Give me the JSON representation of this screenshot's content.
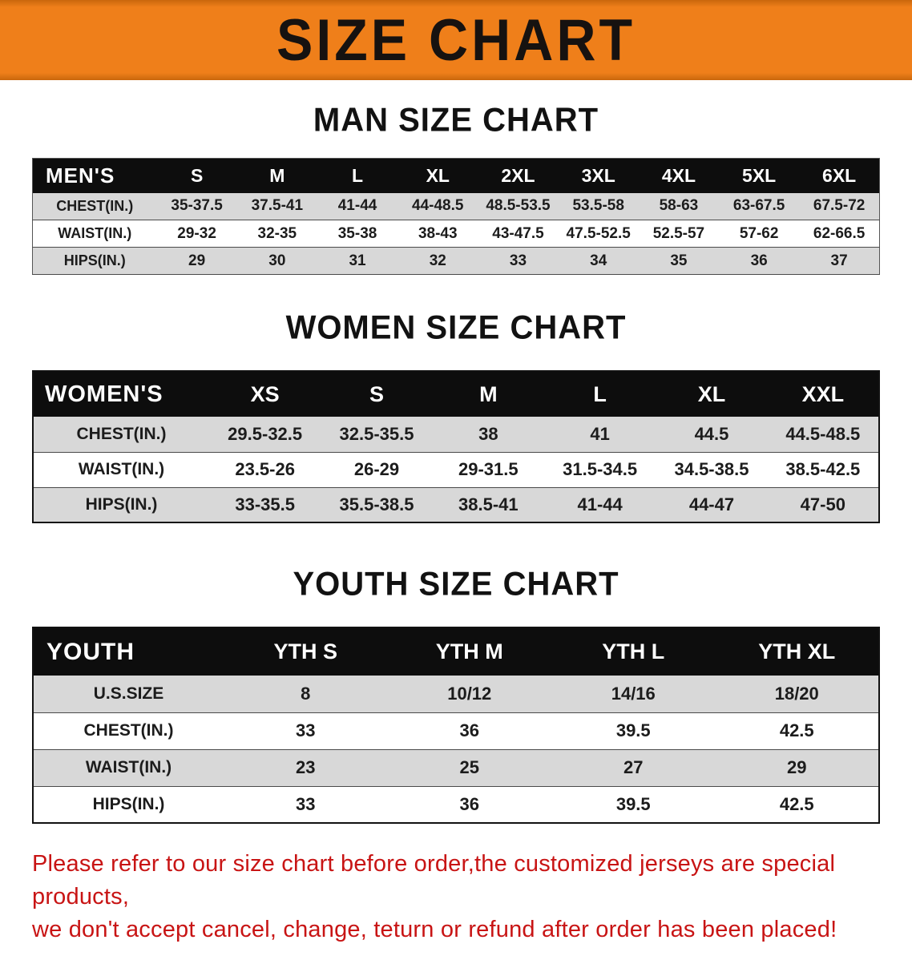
{
  "colors": {
    "accent": "#ef7f1a",
    "table-header-bg": "#0d0d0d",
    "row-shade": "#d8d8d8",
    "warning": "#c81414"
  },
  "banner": {
    "title": "SIZE CHART"
  },
  "sections": [
    {
      "id": "men",
      "heading": "MAN SIZE CHART",
      "table": {
        "header": [
          "MEN'S",
          "S",
          "M",
          "L",
          "XL",
          "2XL",
          "3XL",
          "4XL",
          "5XL",
          "6XL"
        ],
        "rows": [
          [
            "CHEST(IN.)",
            "35-37.5",
            "37.5-41",
            "41-44",
            "44-48.5",
            "48.5-53.5",
            "53.5-58",
            "58-63",
            "63-67.5",
            "67.5-72"
          ],
          [
            "WAIST(IN.)",
            "29-32",
            "32-35",
            "35-38",
            "38-43",
            "43-47.5",
            "47.5-52.5",
            "52.5-57",
            "57-62",
            "62-66.5"
          ],
          [
            "HIPS(IN.)",
            "29",
            "30",
            "31",
            "32",
            "33",
            "34",
            "35",
            "36",
            "37"
          ]
        ]
      }
    },
    {
      "id": "women",
      "heading": "WOMEN SIZE CHART",
      "table": {
        "header": [
          "WOMEN'S",
          "XS",
          "S",
          "M",
          "L",
          "XL",
          "XXL"
        ],
        "rows": [
          [
            "CHEST(IN.)",
            "29.5-32.5",
            "32.5-35.5",
            "38",
            "41",
            "44.5",
            "44.5-48.5"
          ],
          [
            "WAIST(IN.)",
            "23.5-26",
            "26-29",
            "29-31.5",
            "31.5-34.5",
            "34.5-38.5",
            "38.5-42.5"
          ],
          [
            "HIPS(IN.)",
            "33-35.5",
            "35.5-38.5",
            "38.5-41",
            "41-44",
            "44-47",
            "47-50"
          ]
        ]
      }
    },
    {
      "id": "youth",
      "heading": "YOUTH SIZE CHART",
      "table": {
        "header": [
          "YOUTH",
          "YTH S",
          "YTH M",
          "YTH L",
          "YTH XL"
        ],
        "rows": [
          [
            "U.S.SIZE",
            "8",
            "10/12",
            "14/16",
            "18/20"
          ],
          [
            "CHEST(IN.)",
            "33",
            "36",
            "39.5",
            "42.5"
          ],
          [
            "WAIST(IN.)",
            "23",
            "25",
            "27",
            "29"
          ],
          [
            "HIPS(IN.)",
            "33",
            "36",
            "39.5",
            "42.5"
          ]
        ]
      }
    }
  ],
  "footer": {
    "line1": "Please refer to our size chart before order,the customized jerseys are special products,",
    "line2": "we don't accept cancel, change, teturn or refund after order has been placed!"
  }
}
